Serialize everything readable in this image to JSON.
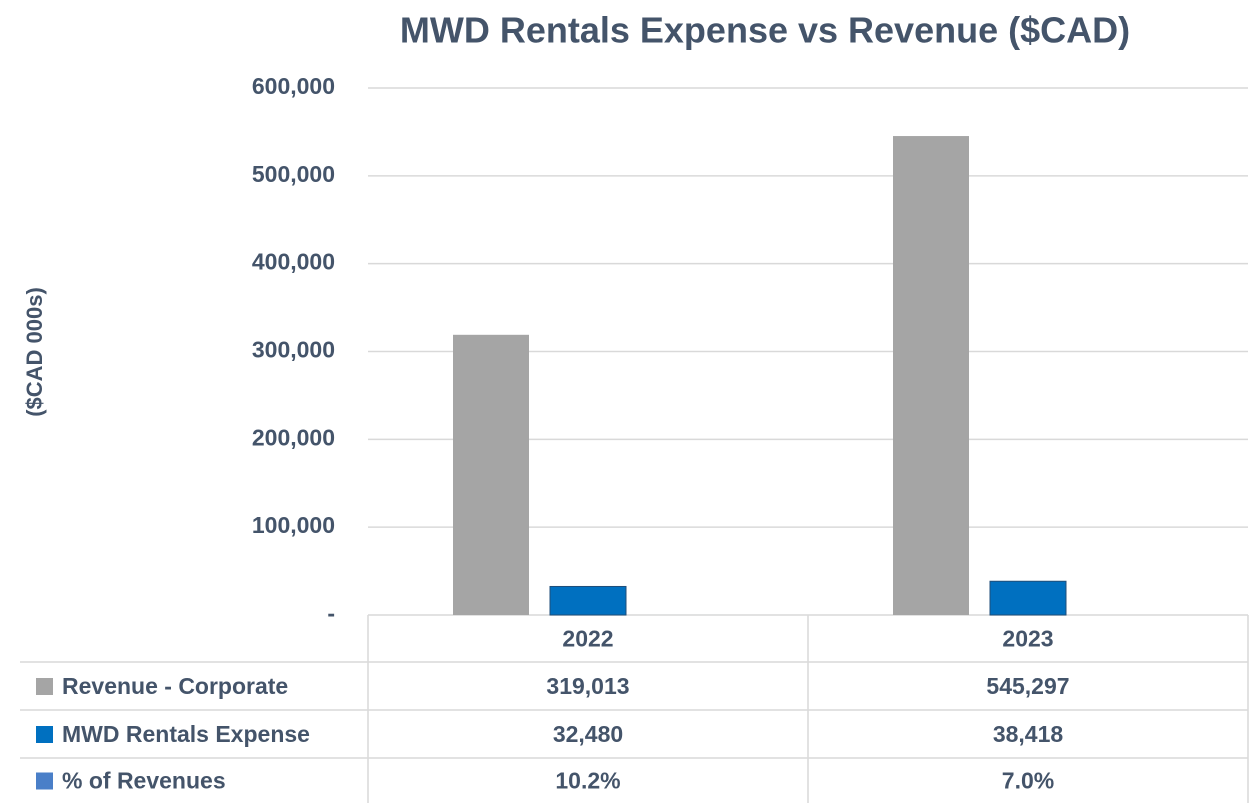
{
  "chart_data": {
    "type": "bar",
    "title": "MWD Rentals Expense vs Revenue ($CAD)",
    "y_label": "($CAD 000s)",
    "categories": [
      "2022",
      "2023"
    ],
    "series": [
      {
        "name": "Revenue - Corporate",
        "color": "#a5a5a5",
        "values": [
          319013,
          545297
        ],
        "value_labels": [
          "319,013",
          "545,297"
        ]
      },
      {
        "name": "MWD Rentals Expense",
        "color": "#0070c0",
        "values": [
          32480,
          38418
        ],
        "value_labels": [
          "32,480",
          "38,418"
        ]
      },
      {
        "name": "% of Revenues",
        "color": "#4a7fc8",
        "values": [
          10.2,
          7.0
        ],
        "value_labels": [
          "10.2%",
          "7.0%"
        ]
      }
    ],
    "ylim": [
      0,
      600000
    ],
    "yticks": [
      {
        "value": 0,
        "label": "-"
      },
      {
        "value": 100000,
        "label": "100,000"
      },
      {
        "value": 200000,
        "label": "200,000"
      },
      {
        "value": 300000,
        "label": "300,000"
      },
      {
        "value": 400000,
        "label": "400,000"
      },
      {
        "value": 500000,
        "label": "500,000"
      },
      {
        "value": 600000,
        "label": "600,000"
      }
    ],
    "grid": true
  }
}
